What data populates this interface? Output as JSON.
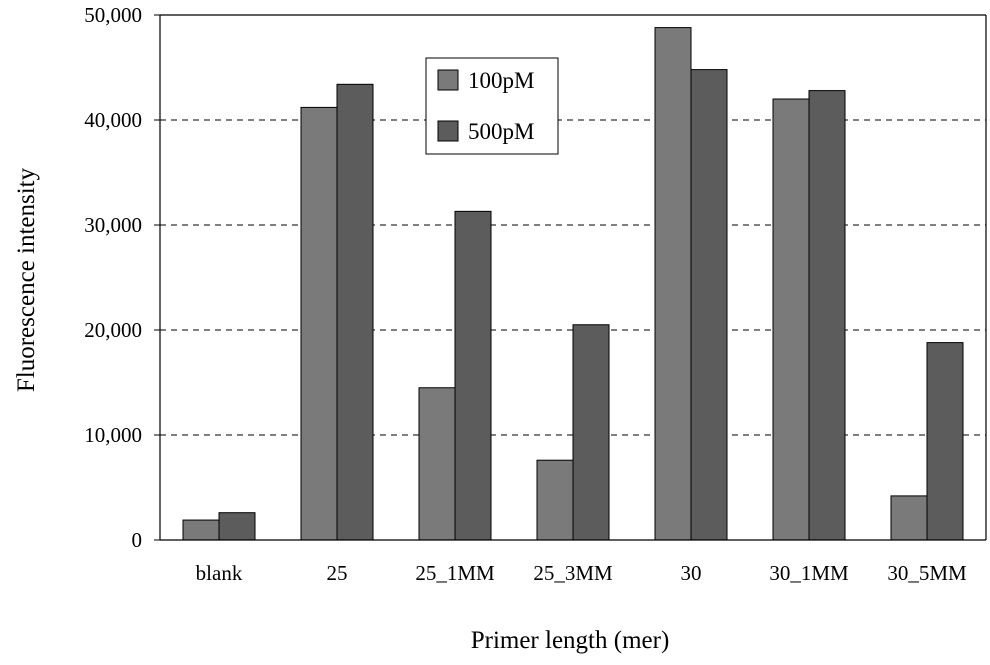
{
  "chart_data": {
    "type": "bar",
    "title": "",
    "xlabel": "Primer length (mer)",
    "ylabel": "Fluorescence intensity",
    "categories": [
      "blank",
      "25",
      "25_1MM",
      "25_3MM",
      "30",
      "30_1MM",
      "30_5MM"
    ],
    "series": [
      {
        "name": "100pM",
        "values": [
          1900,
          41200,
          14500,
          7600,
          48800,
          42000,
          4200
        ],
        "color": "#7a7a7a"
      },
      {
        "name": "500pM",
        "values": [
          2600,
          43400,
          31300,
          20500,
          44800,
          42800,
          18800
        ],
        "color": "#5c5c5c"
      }
    ],
    "ylim": [
      0,
      50000
    ],
    "yticks": [
      0,
      10000,
      20000,
      30000,
      40000,
      50000
    ],
    "ytick_labels": [
      "0",
      "10,000",
      "20,000",
      "30,000",
      "40,000",
      "50,000"
    ],
    "grid": true,
    "legend_position": "top-center"
  }
}
